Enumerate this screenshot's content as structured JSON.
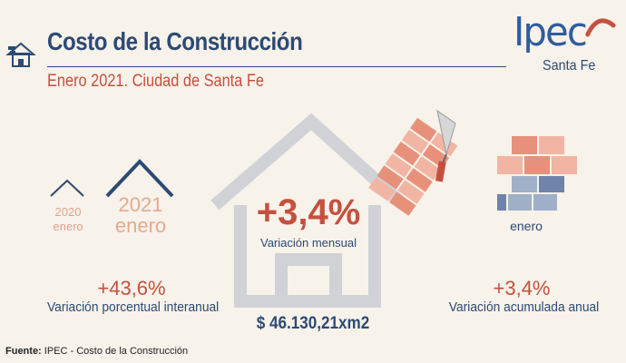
{
  "header": {
    "title": "Costo de la Construcción",
    "subtitle": "Enero 2021. Ciudad de Santa Fe"
  },
  "logo": {
    "brand": "Ipec",
    "region": "Santa Fe"
  },
  "comparison": {
    "prev_year": "2020",
    "prev_month": "enero",
    "curr_year": "2021",
    "curr_month": "enero"
  },
  "stats": {
    "interannual_value": "+43,6%",
    "interannual_label": "Variación porcentual interanual",
    "monthly_value": "+3,4%",
    "monthly_label": "Variación mensual",
    "price": "$ 46.130,21xm2",
    "cumulative_month": "enero",
    "cumulative_value": "+3,4%",
    "cumulative_label": "Variación acumulada anual"
  },
  "footer": {
    "source_label": "Fuente:",
    "source_text": " IPEC - Costo de la Construcción"
  },
  "colors": {
    "navy": "#2c4a73",
    "red": "#c6503f",
    "house_grey": "#d0d2d6",
    "brick_light": "#f2b5a3",
    "brick_mid": "#e8917a",
    "brick_blue": "#6f84a8"
  }
}
